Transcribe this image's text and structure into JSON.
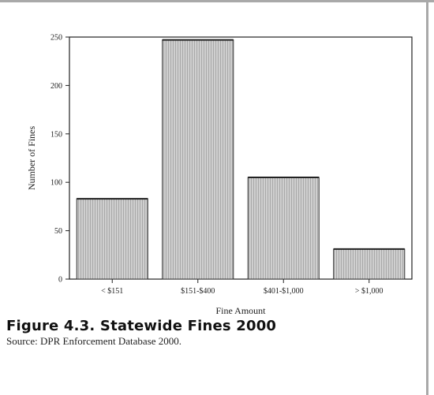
{
  "chart_data": {
    "type": "bar",
    "categories": [
      "< $151",
      "$151-$400",
      "$401-$1,000",
      "> $1,000"
    ],
    "values": [
      83,
      247,
      105,
      31
    ],
    "xlabel": "Fine Amount",
    "ylabel": "Number of Fines",
    "ylim": [
      0,
      250
    ],
    "yticks": [
      0,
      50,
      100,
      150,
      200,
      250
    ],
    "grid": false,
    "bar_color": "#c8c8c8"
  },
  "caption": {
    "title": "Figure 4.3. Statewide Fines 2000",
    "source": "Source: DPR Enforcement Database 2000."
  }
}
